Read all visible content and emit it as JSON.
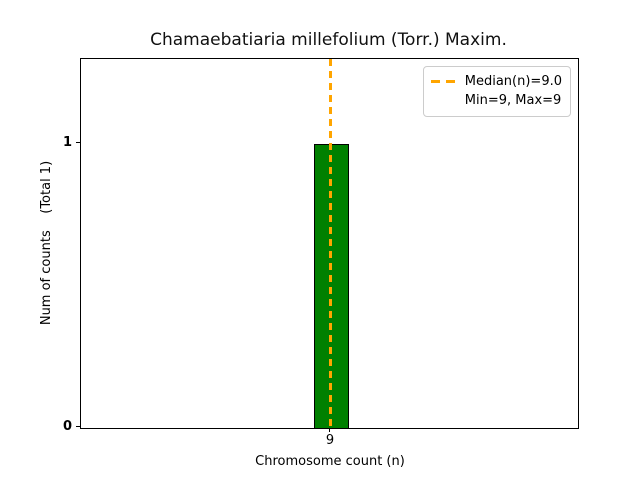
{
  "figure": {
    "title": "Chamaebatiaria millefolium (Torr.) Maxim.",
    "xlabel": "Chromosome count (n)",
    "ylabel": "Num of counts    (Total 1)"
  },
  "axes": {
    "xticks": [
      "9"
    ],
    "yticks": [
      "0",
      "1"
    ]
  },
  "legend": {
    "entries": [
      {
        "label": "Median(n)=9.0",
        "swatch": "orange-dashed-line"
      },
      {
        "label": "Min=9, Max=9",
        "swatch": "none"
      }
    ]
  },
  "colors": {
    "bar_fill": "#008000",
    "bar_edge": "#000000",
    "median_line": "#FFA500",
    "axis": "#000000",
    "legend_border": "#cccccc",
    "background": "#ffffff"
  },
  "chart_data": {
    "type": "bar",
    "categories": [
      9
    ],
    "values": [
      1
    ],
    "title": "Chamaebatiaria millefolium (Torr.) Maxim.",
    "xlabel": "Chromosome count (n)",
    "ylabel": "Num of counts",
    "total_annotation": "(Total 1)",
    "ylim": [
      0,
      1.3
    ],
    "yticks": [
      0,
      1
    ],
    "xticks": [
      9
    ],
    "bar_color": "#008000",
    "bar_edge_color": "#000000",
    "median_line": {
      "value": 9.0,
      "color": "#FFA500",
      "style": "dashed",
      "label": "Median(n)=9.0"
    },
    "annotations": [
      "Min=9, Max=9"
    ],
    "legend_position": "upper right",
    "grid": false
  }
}
